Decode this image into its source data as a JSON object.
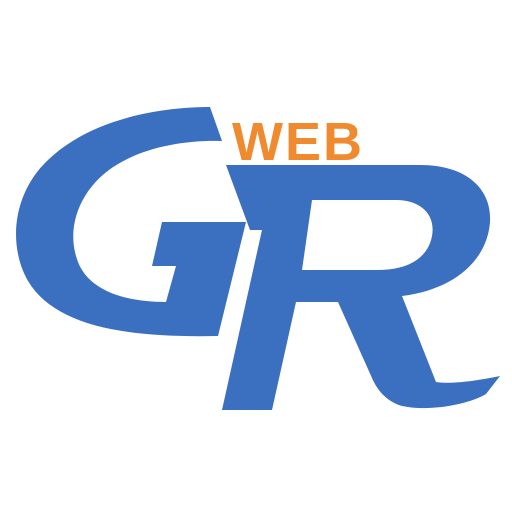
{
  "logo": {
    "name": "WebGR logo",
    "top_text": "WEB",
    "main_letters": "GR",
    "colors": {
      "background": "#ffffff",
      "primary_blue": "#3b6fc0",
      "accent_orange": "#f08a2e"
    }
  }
}
